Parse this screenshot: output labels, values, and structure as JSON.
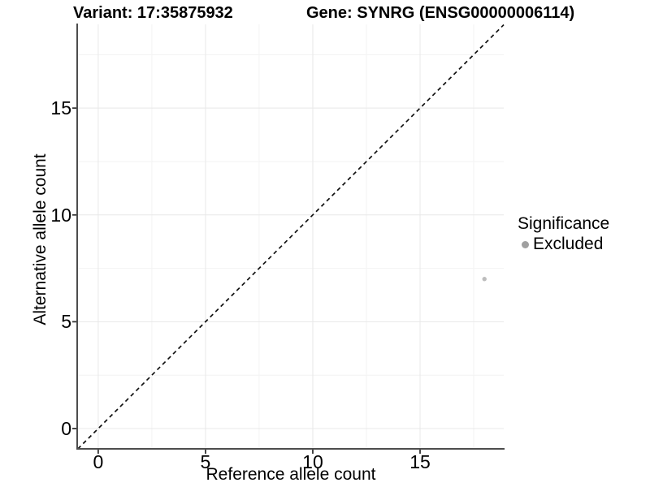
{
  "page": {
    "background": "#ffffff"
  },
  "chart_data": {
    "type": "scatter",
    "titles": {
      "left": "Variant: 17:35875932",
      "right": "Gene: SYNRG (ENSG00000006114)"
    },
    "xlabel": "Reference allele count",
    "ylabel": "Alternative allele count",
    "x_ticks": [
      0,
      5,
      10,
      15
    ],
    "y_ticks": [
      0,
      5,
      10,
      15
    ],
    "xlim": [
      -0.98,
      18.9
    ],
    "ylim": [
      -0.95,
      18.92
    ],
    "grid": {
      "major": true,
      "minor": true
    },
    "points": [
      {
        "x": 18,
        "y": 7,
        "series": "Excluded"
      }
    ],
    "reference_line": {
      "kind": "identity y=x",
      "style": "dashed"
    },
    "legend": {
      "title": "Significance",
      "position": "right",
      "entries": [
        {
          "label": "Excluded",
          "color": "#a0a0a0"
        }
      ]
    },
    "colors": {
      "point": "#bdbdbd",
      "legend_dot": "#a0a0a0",
      "grid_major": "#e8e8e8",
      "grid_minor": "#f3f3f3",
      "axis_line": "#4d4d4d",
      "tick_mark": "#333333",
      "diagonal": "#111111",
      "text": "#000000"
    }
  }
}
